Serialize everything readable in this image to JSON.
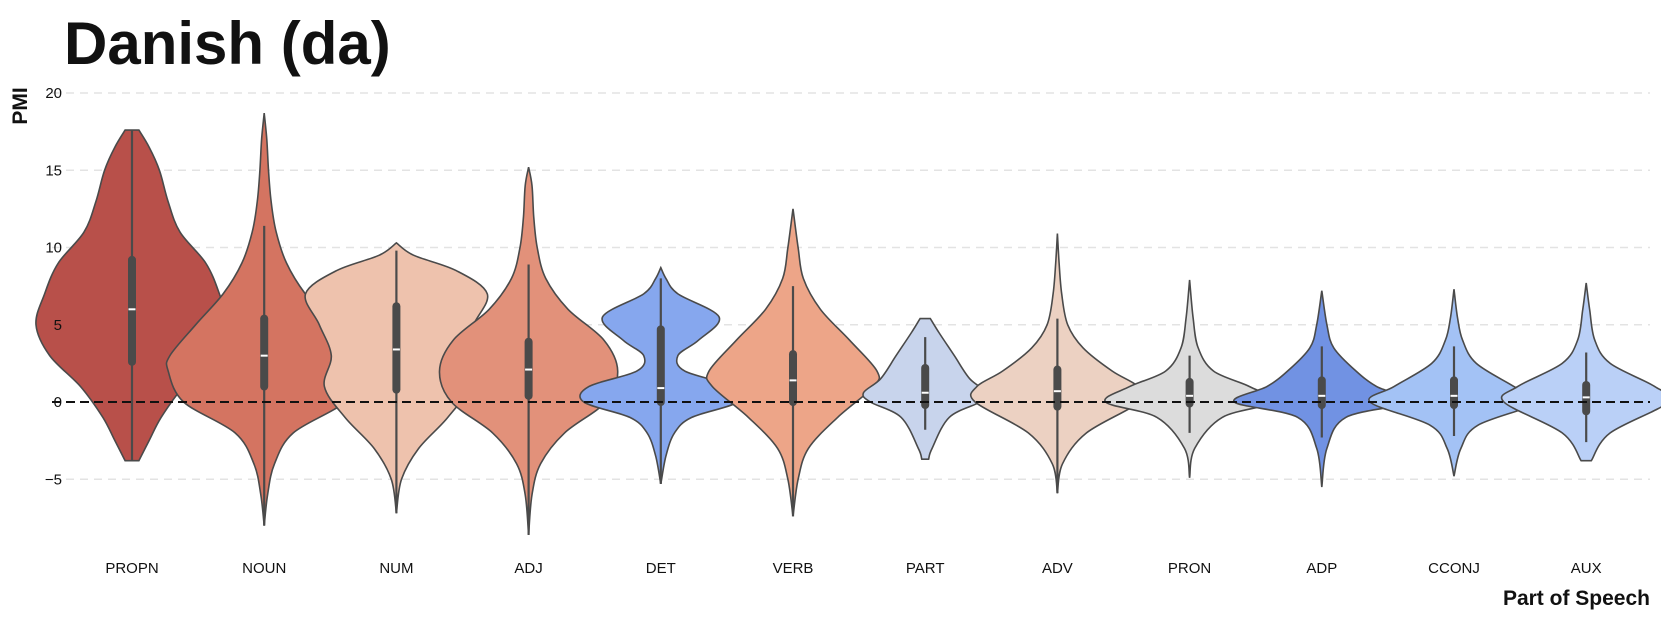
{
  "chart_data": {
    "type": "violin",
    "title": "Danish (da)",
    "xlabel": "Part of Speech",
    "ylabel": "PMI",
    "ylim": [
      -8.8,
      20.5
    ],
    "yticks": [
      -5,
      0,
      5,
      10,
      15,
      20
    ],
    "ytick_labels": [
      "−5",
      "0",
      "5",
      "10",
      "15",
      "20"
    ],
    "grid": true,
    "reference_line_y": 0,
    "categories": [
      "PROPN",
      "NOUN",
      "NUM",
      "ADJ",
      "DET",
      "VERB",
      "PART",
      "ADV",
      "PRON",
      "ADP",
      "CCONJ",
      "AUX"
    ],
    "series": [
      {
        "name": "PROPN",
        "color": "#b8504a",
        "min": -3.8,
        "max": 17.6,
        "q1": 2.6,
        "median": 6.0,
        "q3": 9.2,
        "whisker_low": -3.8,
        "whisker_high": 17.6,
        "density": [
          [
            -3.8,
            0.04
          ],
          [
            -2.5,
            0.1
          ],
          [
            -1,
            0.17
          ],
          [
            1,
            0.3
          ],
          [
            3,
            0.48
          ],
          [
            5,
            0.56
          ],
          [
            7,
            0.51
          ],
          [
            9,
            0.43
          ],
          [
            11,
            0.28
          ],
          [
            13,
            0.21
          ],
          [
            15,
            0.16
          ],
          [
            16.5,
            0.1
          ],
          [
            17.6,
            0.04
          ]
        ]
      },
      {
        "name": "NOUN",
        "color": "#d47461",
        "min": -8.0,
        "max": 18.7,
        "q1": 1.0,
        "median": 3.0,
        "q3": 5.4,
        "whisker_low": -8.0,
        "whisker_high": 11.4,
        "density": [
          [
            -8,
            0.0
          ],
          [
            -6,
            0.02
          ],
          [
            -4,
            0.06
          ],
          [
            -2,
            0.17
          ],
          [
            0,
            0.47
          ],
          [
            2,
            0.56
          ],
          [
            3,
            0.55
          ],
          [
            5,
            0.4
          ],
          [
            7,
            0.24
          ],
          [
            9,
            0.13
          ],
          [
            11,
            0.07
          ],
          [
            13,
            0.04
          ],
          [
            15,
            0.025
          ],
          [
            17,
            0.015
          ],
          [
            18.7,
            0.0
          ]
        ]
      },
      {
        "name": "NUM",
        "color": "#eec2ad",
        "min": -7.2,
        "max": 10.3,
        "q1": 0.8,
        "median": 3.4,
        "q3": 6.2,
        "whisker_low": -7.2,
        "whisker_high": 9.8,
        "density": [
          [
            -7.2,
            0.0
          ],
          [
            -5,
            0.03
          ],
          [
            -3,
            0.13
          ],
          [
            -1,
            0.3
          ],
          [
            1,
            0.42
          ],
          [
            3,
            0.38
          ],
          [
            5,
            0.45
          ],
          [
            7,
            0.53
          ],
          [
            8.5,
            0.35
          ],
          [
            9.5,
            0.1
          ],
          [
            10.3,
            0.0
          ]
        ]
      },
      {
        "name": "ADJ",
        "color": "#e2917a",
        "min": -8.6,
        "max": 15.2,
        "q1": 0.4,
        "median": 2.1,
        "q3": 3.9,
        "whisker_low": -8.6,
        "whisker_high": 8.9,
        "density": [
          [
            -8.6,
            0.0
          ],
          [
            -6,
            0.02
          ],
          [
            -4,
            0.07
          ],
          [
            -2,
            0.21
          ],
          [
            0,
            0.45
          ],
          [
            2,
            0.52
          ],
          [
            4,
            0.44
          ],
          [
            6,
            0.23
          ],
          [
            8,
            0.1
          ],
          [
            10,
            0.05
          ],
          [
            12,
            0.03
          ],
          [
            14,
            0.02
          ],
          [
            15.2,
            0.0
          ]
        ]
      },
      {
        "name": "DET",
        "color": "#86a7ee",
        "min": -5.3,
        "max": 8.7,
        "q1": 0.0,
        "median": 0.9,
        "q3": 4.7,
        "whisker_low": -5.3,
        "whisker_high": 8.0,
        "density": [
          [
            -5.3,
            0.0
          ],
          [
            -3.5,
            0.03
          ],
          [
            -2,
            0.08
          ],
          [
            -1,
            0.18
          ],
          [
            0,
            0.45
          ],
          [
            1,
            0.42
          ],
          [
            2,
            0.14
          ],
          [
            3,
            0.1
          ],
          [
            4,
            0.22
          ],
          [
            5.5,
            0.34
          ],
          [
            7,
            0.1
          ],
          [
            8,
            0.03
          ],
          [
            8.7,
            0.0
          ]
        ]
      },
      {
        "name": "VERB",
        "color": "#eda588",
        "min": -7.4,
        "max": 12.5,
        "q1": 0.0,
        "median": 1.4,
        "q3": 3.1,
        "whisker_low": -7.4,
        "whisker_high": 7.5,
        "density": [
          [
            -7.4,
            0.0
          ],
          [
            -5,
            0.03
          ],
          [
            -3,
            0.09
          ],
          [
            -1,
            0.26
          ],
          [
            1,
            0.47
          ],
          [
            2,
            0.49
          ],
          [
            4,
            0.33
          ],
          [
            6,
            0.16
          ],
          [
            8,
            0.06
          ],
          [
            10,
            0.03
          ],
          [
            12.5,
            0.0
          ]
        ]
      },
      {
        "name": "PART",
        "color": "#c8d4ec",
        "min": -3.7,
        "max": 5.4,
        "q1": -0.2,
        "median": 0.6,
        "q3": 2.2,
        "whisker_low": -1.8,
        "whisker_high": 4.2,
        "density": [
          [
            -3.7,
            0.02
          ],
          [
            -3,
            0.04
          ],
          [
            -1,
            0.14
          ],
          [
            0,
            0.32
          ],
          [
            0.6,
            0.36
          ],
          [
            1.5,
            0.26
          ],
          [
            3,
            0.17
          ],
          [
            4.5,
            0.08
          ],
          [
            5.4,
            0.03
          ]
        ]
      },
      {
        "name": "ADV",
        "color": "#ecd1c2",
        "min": -5.9,
        "max": 10.9,
        "q1": -0.3,
        "median": 0.7,
        "q3": 2.1,
        "whisker_low": -5.9,
        "whisker_high": 5.4,
        "density": [
          [
            -5.9,
            0.0
          ],
          [
            -4,
            0.03
          ],
          [
            -2,
            0.17
          ],
          [
            0,
            0.48
          ],
          [
            1,
            0.47
          ],
          [
            2,
            0.32
          ],
          [
            3.5,
            0.15
          ],
          [
            5,
            0.06
          ],
          [
            7,
            0.025
          ],
          [
            9,
            0.01
          ],
          [
            10.9,
            0.0
          ]
        ]
      },
      {
        "name": "PRON",
        "color": "#dcdcdc",
        "min": -4.9,
        "max": 7.9,
        "q1": -0.1,
        "median": 0.4,
        "q3": 1.3,
        "whisker_low": -2.0,
        "whisker_high": 3.0,
        "density": [
          [
            -4.9,
            0.0
          ],
          [
            -3,
            0.03
          ],
          [
            -1,
            0.19
          ],
          [
            0,
            0.49
          ],
          [
            1,
            0.35
          ],
          [
            2,
            0.14
          ],
          [
            3.5,
            0.05
          ],
          [
            5.5,
            0.02
          ],
          [
            7.9,
            0.0
          ]
        ]
      },
      {
        "name": "ADP",
        "color": "#7192e3",
        "min": -5.5,
        "max": 7.2,
        "q1": -0.2,
        "median": 0.4,
        "q3": 1.4,
        "whisker_low": -2.3,
        "whisker_high": 3.6,
        "density": [
          [
            -5.5,
            0.0
          ],
          [
            -3,
            0.03
          ],
          [
            -1,
            0.14
          ],
          [
            0,
            0.51
          ],
          [
            1,
            0.32
          ],
          [
            2,
            0.2
          ],
          [
            3.5,
            0.07
          ],
          [
            5,
            0.03
          ],
          [
            7.2,
            0.0
          ]
        ]
      },
      {
        "name": "CCONJ",
        "color": "#a3c2f5",
        "min": -4.8,
        "max": 7.3,
        "q1": -0.2,
        "median": 0.4,
        "q3": 1.4,
        "whisker_low": -2.2,
        "whisker_high": 3.6,
        "density": [
          [
            -4.8,
            0.0
          ],
          [
            -3,
            0.04
          ],
          [
            -1.5,
            0.14
          ],
          [
            0,
            0.49
          ],
          [
            1,
            0.35
          ],
          [
            2.5,
            0.13
          ],
          [
            4,
            0.05
          ],
          [
            5.5,
            0.02
          ],
          [
            7.3,
            0.0
          ]
        ]
      },
      {
        "name": "AUX",
        "color": "#bad0f7",
        "min": -3.8,
        "max": 7.7,
        "q1": -0.6,
        "median": 0.3,
        "q3": 1.1,
        "whisker_low": -2.6,
        "whisker_high": 3.2,
        "density": [
          [
            -3.8,
            0.03
          ],
          [
            -2,
            0.14
          ],
          [
            0,
            0.48
          ],
          [
            1,
            0.4
          ],
          [
            2.5,
            0.14
          ],
          [
            4,
            0.05
          ],
          [
            6,
            0.02
          ],
          [
            7.7,
            0.0
          ]
        ]
      }
    ]
  }
}
